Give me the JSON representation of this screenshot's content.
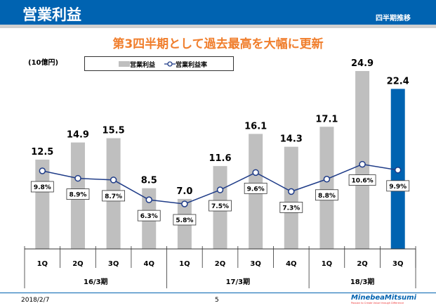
{
  "header": {
    "title": "営業利益",
    "subtitle": "四半期推移"
  },
  "headline": "第3四半期として過去最高を大幅に更新",
  "footer": {
    "date": "2018/2/7",
    "page": "5",
    "logo": "MinebeaMitsumi",
    "logo_tagline": "Passion to Create Value through Difference"
  },
  "colors": {
    "header": "#0063b1",
    "bar": "#bfbfbf",
    "bar_highlight": "#0063b1",
    "line": "#1f3c88",
    "headline": "#f07e2c"
  },
  "chart_data": {
    "type": "bar",
    "unit_label": "(10億円)",
    "categories": [
      "1Q",
      "2Q",
      "3Q",
      "4Q",
      "1Q",
      "2Q",
      "3Q",
      "4Q",
      "1Q",
      "2Q",
      "3Q"
    ],
    "groups": [
      {
        "label": "16/3期",
        "count": 4
      },
      {
        "label": "17/3期",
        "count": 4
      },
      {
        "label": "18/3期",
        "count": 3
      }
    ],
    "series": [
      {
        "name": "営業利益",
        "type": "bar",
        "values": [
          12.5,
          14.9,
          15.5,
          8.5,
          7.0,
          11.6,
          16.1,
          14.3,
          17.1,
          24.9,
          22.4
        ],
        "labels": [
          "12.5",
          "14.9",
          "15.5",
          "8.5",
          "7.0",
          "11.6",
          "16.1",
          "14.3",
          "17.1",
          "24.9",
          "22.4"
        ],
        "highlight_index": 10
      },
      {
        "name": "営業利益率",
        "type": "line",
        "values": [
          9.8,
          8.9,
          8.7,
          6.3,
          5.8,
          7.5,
          9.6,
          7.3,
          8.8,
          10.6,
          9.9
        ],
        "labels": [
          "9.8%",
          "8.9%",
          "8.7%",
          "6.3%",
          "5.8%",
          "7.5%",
          "9.6%",
          "7.3%",
          "8.8%",
          "10.6%",
          "9.9%"
        ]
      }
    ],
    "legend_placement": "top",
    "grid": false
  }
}
